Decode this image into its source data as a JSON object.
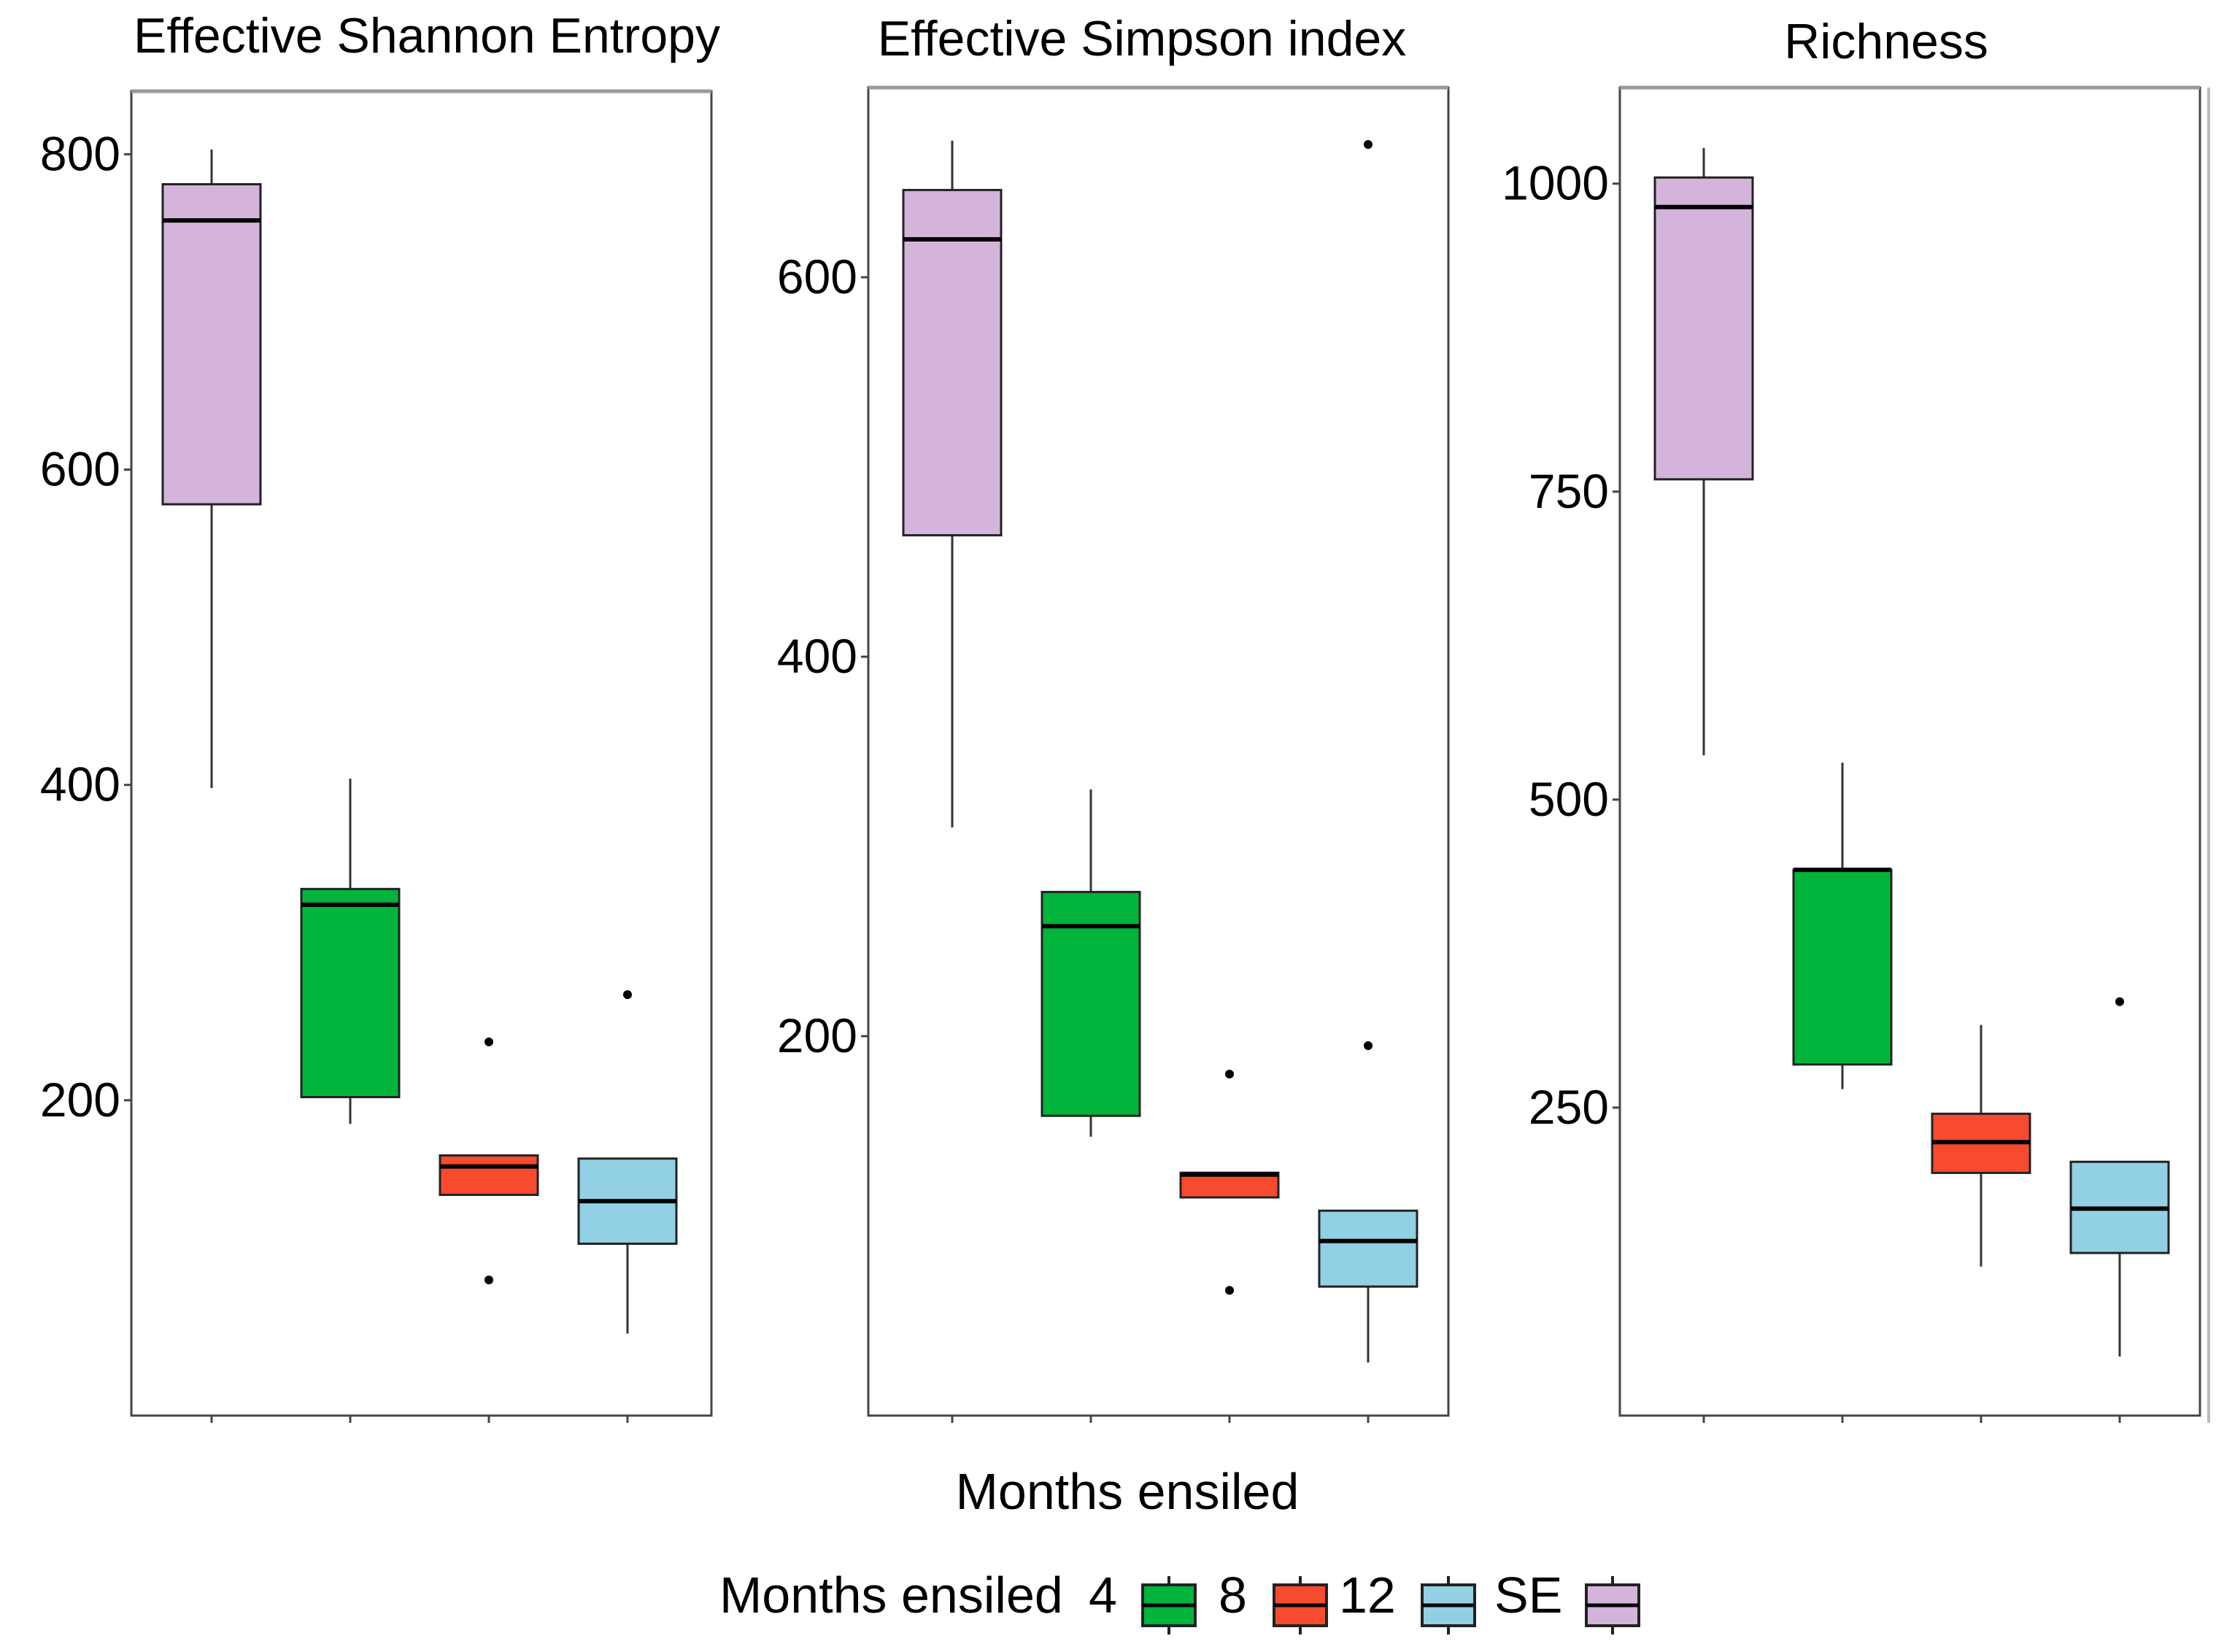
{
  "chart_data": [
    {
      "type": "boxplot",
      "title": "Effective Shannon  Entropy",
      "xlabel": "",
      "ylabel": "",
      "ylim": [
        0,
        840
      ],
      "yticks": [
        200,
        400,
        600,
        800
      ],
      "categories": [
        "SE",
        "4",
        "8",
        "12"
      ],
      "boxes": [
        {
          "category": "SE",
          "color": "#D4B4DA",
          "whisker_low": 398,
          "q1": 578,
          "median": 758,
          "q3": 781,
          "whisker_high": 803,
          "outliers": []
        },
        {
          "category": "4",
          "color": "#00B43C",
          "whisker_low": 185,
          "q1": 202,
          "median": 324,
          "q3": 334,
          "whisker_high": 404,
          "outliers": []
        },
        {
          "category": "8",
          "color": "#F74A2F",
          "whisker_low": 140,
          "q1": 140,
          "median": 158,
          "q3": 165,
          "whisker_high": 165,
          "outliers": [
            237,
            86
          ]
        },
        {
          "category": "12",
          "color": "#92D0E4",
          "whisker_low": 52,
          "q1": 109,
          "median": 136,
          "q3": 163,
          "whisker_high": 163,
          "outliers": [
            267
          ]
        }
      ]
    },
    {
      "type": "boxplot",
      "title": "Effective Simpson  index",
      "xlabel": "",
      "ylabel": "",
      "ylim": [
        0,
        700
      ],
      "yticks": [
        200,
        400,
        600
      ],
      "categories": [
        "SE",
        "4",
        "8",
        "12"
      ],
      "boxes": [
        {
          "category": "SE",
          "color": "#D4B4DA",
          "whisker_low": 310,
          "q1": 464,
          "median": 620,
          "q3": 646,
          "whisker_high": 672,
          "outliers": []
        },
        {
          "category": "4",
          "color": "#00B43C",
          "whisker_low": 147,
          "q1": 158,
          "median": 258,
          "q3": 276,
          "whisker_high": 330,
          "outliers": []
        },
        {
          "category": "8",
          "color": "#F74A2F",
          "whisker_low": 115,
          "q1": 115,
          "median": 127,
          "q3": 128,
          "whisker_high": 128,
          "outliers": [
            180,
            66
          ]
        },
        {
          "category": "12",
          "color": "#92D0E4",
          "whisker_low": 28,
          "q1": 68,
          "median": 92,
          "q3": 108,
          "whisker_high": 108,
          "outliers": [
            195,
            670
          ]
        }
      ]
    },
    {
      "type": "boxplot",
      "title": "Richness",
      "xlabel": "",
      "ylabel": "",
      "ylim": [
        0,
        1078
      ],
      "yticks": [
        250,
        500,
        750,
        1000
      ],
      "categories": [
        "SE",
        "4",
        "8",
        "12"
      ],
      "boxes": [
        {
          "category": "SE",
          "color": "#D4B4DA",
          "whisker_low": 536,
          "q1": 760,
          "median": 981,
          "q3": 1005,
          "whisker_high": 1029,
          "outliers": []
        },
        {
          "category": "4",
          "color": "#00B43C",
          "whisker_low": 265,
          "q1": 285,
          "median": 443,
          "q3": 443,
          "whisker_high": 530,
          "outliers": []
        },
        {
          "category": "8",
          "color": "#F74A2F",
          "whisker_low": 121,
          "q1": 197,
          "median": 222,
          "q3": 245,
          "whisker_high": 317,
          "outliers": []
        },
        {
          "category": "12",
          "color": "#92D0E4",
          "whisker_low": 48,
          "q1": 132,
          "median": 168,
          "q3": 206,
          "whisker_high": 206,
          "outliers": [
            336
          ]
        }
      ]
    }
  ],
  "shared_xlabel": "Months ensiled",
  "legend": {
    "title": "Months ensiled",
    "entries": [
      {
        "label": "4",
        "color": "#00B43C"
      },
      {
        "label": "8",
        "color": "#F74A2F"
      },
      {
        "label": "12",
        "color": "#92D0E4"
      },
      {
        "label": "SE",
        "color": "#D4B4DA"
      }
    ]
  }
}
